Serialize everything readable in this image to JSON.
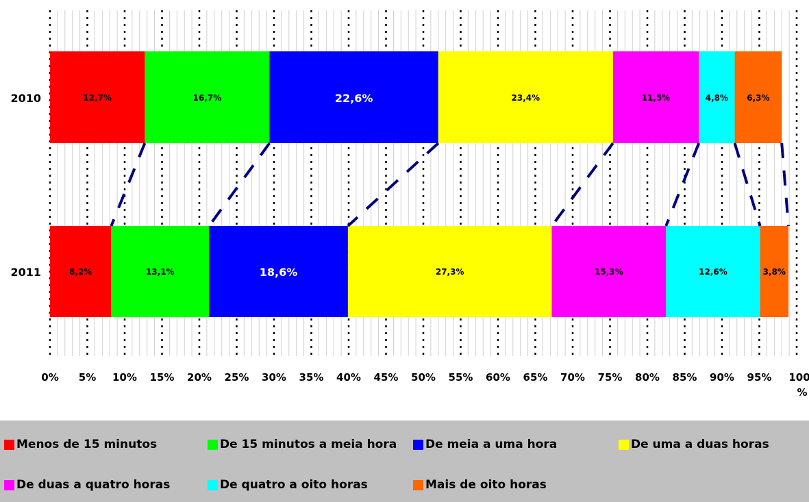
{
  "chart_data": {
    "type": "bar",
    "orientation": "horizontal",
    "stacked": true,
    "normalized": true,
    "categories": [
      "2010",
      "2011"
    ],
    "series": [
      {
        "name": "Menos de 15 minutos",
        "color": "#ff0000",
        "values": [
          12.7,
          8.2
        ],
        "labels": [
          "12,7%",
          "8,2%"
        ]
      },
      {
        "name": "De 15 minutos a meia hora",
        "color": "#00ff00",
        "values": [
          16.7,
          13.1
        ],
        "labels": [
          "16,7%",
          "13,1%"
        ]
      },
      {
        "name": "De meia a uma hora",
        "color": "#0000ff",
        "values": [
          22.6,
          18.6
        ],
        "labels": [
          "22,6%",
          "18,6%"
        ]
      },
      {
        "name": "De uma a duas horas",
        "color": "#ffff00",
        "values": [
          23.4,
          27.3
        ],
        "labels": [
          "23,4%",
          "27,3%"
        ]
      },
      {
        "name": "De duas a quatro horas",
        "color": "#ff00ff",
        "values": [
          11.5,
          15.3
        ],
        "labels": [
          "11,5%",
          "15,3%"
        ]
      },
      {
        "name": "De quatro a oito horas",
        "color": "#00ffff",
        "values": [
          4.8,
          12.6
        ],
        "labels": [
          "4,8%",
          "12,6%"
        ]
      },
      {
        "name": "Mais de oito horas",
        "color": "#ff6600",
        "values": [
          6.3,
          3.8
        ],
        "labels": [
          "6,3%",
          "3,8%"
        ]
      }
    ],
    "xlim": [
      0,
      100
    ],
    "xticks": [
      "0%",
      "5%",
      "10%",
      "15%",
      "20%",
      "25%",
      "30%",
      "35%",
      "40%",
      "45%",
      "50%",
      "55%",
      "60%",
      "65%",
      "70%",
      "75%",
      "80%",
      "85%",
      "90%",
      "95%",
      "100%"
    ],
    "series_lines": true,
    "series_line_color": "#000080",
    "grid": true,
    "legend_position": "bottom",
    "legend_background": "#c0c0c0"
  }
}
